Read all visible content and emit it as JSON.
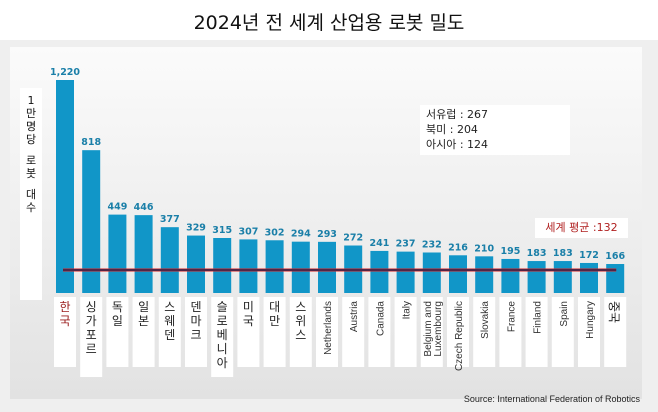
{
  "title": "2024년 전 세계 산업용 로봇 밀도",
  "y_axis_label_lines": [
    "1",
    "만",
    "명",
    "당",
    "",
    "로",
    "봇",
    "",
    "대",
    "수"
  ],
  "regional_box": {
    "lines": [
      "서유럽 : 267",
      "북미 : 204",
      "아시아 : 124"
    ]
  },
  "average_label": "세계 평균 :132",
  "source": "Source: International Federation of Robotics",
  "colors": {
    "bar": "#1196c8",
    "value_label": "#1a7fa8",
    "average_line": "#2a2550",
    "average_line_accent": "#d02020",
    "korea_label": "#9a1c1c",
    "average_text": "#b02020"
  },
  "chart_data": {
    "type": "bar",
    "title": "2024년 전 세계 산업용 로봇 밀도",
    "xlabel": "",
    "ylabel": "1만명당 로봇 대수",
    "ylim": [
      0,
      1220
    ],
    "grid": false,
    "categories": [
      "한국",
      "싱가포르",
      "독일",
      "일본",
      "스웨덴",
      "덴마크",
      "슬로베니아",
      "미국",
      "대만",
      "스위스",
      "Netherlands",
      "Austria",
      "Canada",
      "Italy",
      "Belgium and Luxembourg",
      "Czech Republic",
      "Slovakia",
      "France",
      "Finland",
      "Spain",
      "Hungary",
      "중국"
    ],
    "values": [
      1220,
      818,
      449,
      446,
      377,
      329,
      315,
      307,
      302,
      294,
      293,
      272,
      241,
      237,
      232,
      216,
      210,
      195,
      183,
      183,
      172,
      166
    ],
    "value_labels": [
      "1,220",
      "818",
      "449",
      "446",
      "377",
      "329",
      "315",
      "307",
      "302",
      "294",
      "293",
      "272",
      "241",
      "237",
      "232",
      "216",
      "210",
      "195",
      "183",
      "183",
      "172",
      "166"
    ],
    "category_label_style": [
      "korean-highlight",
      "korean",
      "korean",
      "korean",
      "korean",
      "korean",
      "korean",
      "korean",
      "korean",
      "korean",
      "latin",
      "latin",
      "latin",
      "latin",
      "latin-2line",
      "latin",
      "latin",
      "latin",
      "latin",
      "latin",
      "latin",
      "korean-rotated"
    ],
    "reference_line": {
      "label": "세계 평균",
      "value": 132
    },
    "annotations": [
      "서유럽 : 267",
      "북미 : 204",
      "아시아 : 124",
      "세계 평균 :132"
    ]
  }
}
